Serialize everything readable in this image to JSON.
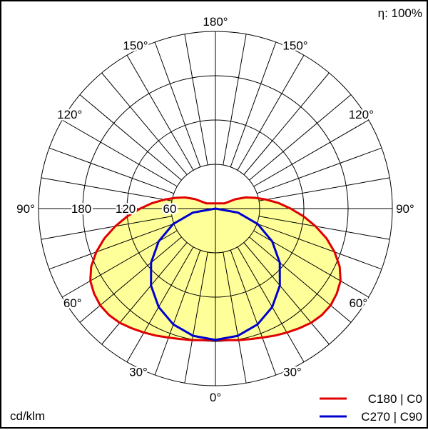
{
  "chart_data": {
    "type": "polar",
    "title": "",
    "efficiency_label": "η: 100%",
    "unit_label": "cd/klm",
    "radial_ticks": [
      60,
      120,
      180
    ],
    "r_max": 240,
    "angle_labels": {
      "left": [
        "0°",
        "30°",
        "60°",
        "90°",
        "120°",
        "150°",
        "180°"
      ],
      "right": [
        "30°",
        "60°",
        "90°",
        "120°",
        "150°"
      ]
    },
    "series": [
      {
        "name": "C180 | C0",
        "color": "#e00000",
        "angles": [
          0,
          5,
          10,
          15,
          20,
          25,
          30,
          35,
          40,
          45,
          50,
          55,
          60,
          65,
          70,
          75,
          80,
          85,
          90,
          95,
          100,
          105,
          110,
          115,
          120
        ],
        "values": [
          178,
          179,
          181,
          183,
          186,
          190,
          194,
          198,
          202,
          204,
          204,
          201,
          196,
          186,
          172,
          156,
          138,
          120,
          102,
          86,
          70,
          56,
          44,
          30,
          14
        ]
      },
      {
        "name": "C270 | C90",
        "color": "#0000cc",
        "angles": [
          0,
          10,
          20,
          30,
          40,
          50,
          60,
          70,
          80,
          90
        ],
        "values": [
          178,
          175,
          167,
          154,
          136,
          114,
          89,
          61,
          31,
          0
        ]
      }
    ],
    "grid": true,
    "legend": "bottom-right"
  }
}
